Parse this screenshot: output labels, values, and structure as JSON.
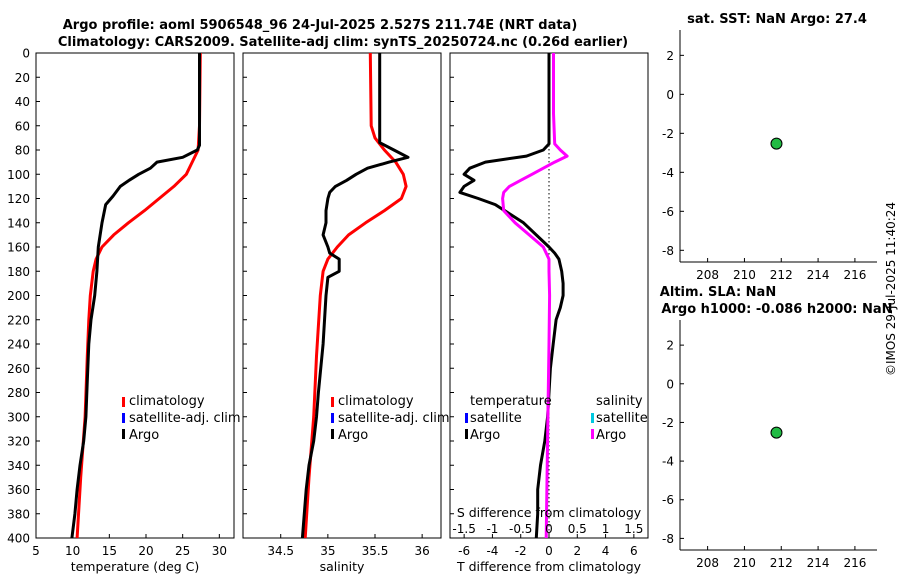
{
  "title_line1": "Argo profile: aoml 5906548_96 24-Jul-2025 2.527S 211.74E (NRT data)",
  "title_line2": "Climatology: CARS2009. Satellite-adj clim: synTS_20250724.nc (0.26d earlier)",
  "watermark": "©IMOS 29-Jul-2025 11:40:24",
  "colors": {
    "climatology": "#ff0000",
    "satellite_adj": "#0000ff",
    "argo": "#000000",
    "salinity_diff": "#ff00ff",
    "satellite_sal": "#00c8e0",
    "marker": "#22bb44"
  },
  "chart_data": [
    {
      "id": "temperature",
      "type": "line",
      "xlabel": "temperature (deg C)",
      "xlim": [
        5,
        32
      ],
      "xticks": [
        5,
        10,
        15,
        20,
        25,
        30
      ],
      "ylim": [
        0,
        400
      ],
      "yticks": [
        0,
        20,
        40,
        60,
        80,
        100,
        120,
        140,
        160,
        180,
        200,
        220,
        240,
        260,
        280,
        300,
        320,
        340,
        360,
        380,
        400
      ],
      "legend": [
        "climatology",
        "satellite-adj. clim",
        "Argo"
      ],
      "series": [
        {
          "name": "climatology",
          "color": "#ff0000",
          "depth": [
            0,
            60,
            80,
            90,
            100,
            110,
            120,
            130,
            140,
            150,
            160,
            170,
            180,
            200,
            220,
            250,
            300,
            350,
            400
          ],
          "values": [
            27.4,
            27.3,
            27.1,
            26.3,
            25.5,
            23.8,
            21.8,
            19.8,
            17.6,
            15.6,
            14.0,
            13.2,
            12.8,
            12.4,
            12.2,
            12.0,
            11.7,
            11.1,
            10.6
          ]
        },
        {
          "name": "Argo",
          "color": "#000000",
          "depth": [
            0,
            76,
            80,
            86,
            90,
            95,
            100,
            105,
            110,
            118,
            125,
            140,
            160,
            180,
            200,
            220,
            240,
            270,
            300,
            320,
            340,
            360,
            380,
            400
          ],
          "values": [
            27.3,
            27.3,
            27.0,
            25.0,
            21.5,
            20.6,
            19.0,
            17.7,
            16.5,
            15.5,
            14.5,
            14.0,
            13.5,
            13.3,
            13.0,
            12.5,
            12.2,
            12.0,
            11.8,
            11.5,
            11.0,
            10.6,
            10.3,
            9.9
          ]
        }
      ]
    },
    {
      "id": "salinity",
      "type": "line",
      "xlabel": "salinity",
      "xlim": [
        34.1,
        36.2
      ],
      "xticks": [
        34.5,
        35,
        35.5,
        36
      ],
      "ylim": [
        0,
        400
      ],
      "legend": [
        "climatology",
        "satellite-adj. clim",
        "Argo"
      ],
      "series": [
        {
          "name": "climatology",
          "color": "#ff0000",
          "depth": [
            0,
            60,
            70,
            80,
            90,
            100,
            110,
            120,
            130,
            140,
            150,
            160,
            170,
            180,
            200,
            250,
            300,
            350,
            400
          ],
          "values": [
            35.45,
            35.46,
            35.5,
            35.6,
            35.72,
            35.8,
            35.83,
            35.78,
            35.6,
            35.4,
            35.22,
            35.1,
            35.0,
            34.95,
            34.92,
            34.88,
            34.85,
            34.8,
            34.76
          ]
        },
        {
          "name": "Argo",
          "color": "#000000",
          "depth": [
            0,
            5,
            74,
            80,
            86,
            90,
            95,
            100,
            105,
            110,
            115,
            120,
            130,
            140,
            150,
            160,
            165,
            170,
            180,
            185,
            200,
            240,
            280,
            300,
            320,
            340,
            360,
            380,
            400
          ],
          "values": [
            35.55,
            35.55,
            35.55,
            35.7,
            35.85,
            35.65,
            35.42,
            35.3,
            35.2,
            35.08,
            35.02,
            35.0,
            34.98,
            34.98,
            34.95,
            35.0,
            35.02,
            35.12,
            35.12,
            35.0,
            34.98,
            34.95,
            34.9,
            34.88,
            34.85,
            34.8,
            34.77,
            34.75,
            34.73
          ]
        }
      ]
    },
    {
      "id": "difference",
      "type": "line",
      "xlabel": "T difference from climatology",
      "xlim": [
        -7,
        7
      ],
      "xticks": [
        -6,
        -4,
        -2,
        0,
        2,
        4,
        6
      ],
      "top_axis_label": "S difference from climatology",
      "top_ticks": [
        "-1.5",
        "-1",
        "-0.5",
        "0",
        "0.5",
        "1",
        "1.5"
      ],
      "ylim": [
        0,
        400
      ],
      "legend_temperature": {
        "title": "temperature",
        "entries": [
          "satellite",
          "Argo"
        ]
      },
      "legend_salinity": {
        "title": "salinity",
        "entries": [
          "satellite",
          "Argo"
        ]
      },
      "series": [
        {
          "name": "temperature Argo",
          "color": "#000000",
          "depth": [
            0,
            75,
            80,
            85,
            90,
            95,
            100,
            105,
            110,
            115,
            120,
            125,
            140,
            160,
            165,
            170,
            180,
            190,
            200,
            210,
            220,
            240,
            260,
            300,
            320,
            340,
            360,
            380,
            400
          ],
          "values": [
            0.0,
            0.0,
            -0.4,
            -1.6,
            -4.5,
            -5.6,
            -6.0,
            -5.3,
            -6.0,
            -6.3,
            -5.0,
            -3.8,
            -1.8,
            0.0,
            0.4,
            0.7,
            0.9,
            1.0,
            1.0,
            0.8,
            0.5,
            0.3,
            0.1,
            -0.1,
            -0.3,
            -0.6,
            -0.8,
            -0.8,
            -0.9
          ]
        },
        {
          "name": "salinity Argo",
          "color": "#ff00ff",
          "depth": [
            0,
            50,
            75,
            80,
            85,
            90,
            95,
            100,
            105,
            110,
            115,
            120,
            130,
            140,
            150,
            160,
            170,
            180,
            200,
            240,
            300,
            400
          ],
          "values": [
            0.08,
            0.08,
            0.1,
            0.2,
            0.32,
            0.1,
            -0.1,
            -0.3,
            -0.5,
            -0.7,
            -0.8,
            -0.82,
            -0.8,
            -0.6,
            -0.35,
            -0.1,
            0.0,
            0.0,
            0.01,
            0.0,
            -0.02,
            -0.05
          ]
        }
      ]
    },
    {
      "id": "sst",
      "type": "scatter",
      "title": "sat. SST: NaN Argo: 27.4",
      "xlim": [
        206.5,
        217.2
      ],
      "xticks": [
        208,
        210,
        212,
        214,
        216
      ],
      "ylim": [
        -8.6,
        3.3
      ],
      "yticks": [
        2,
        0,
        -2,
        -4,
        -6,
        -8
      ],
      "points": [
        {
          "x": 211.74,
          "y": -2.527
        }
      ]
    },
    {
      "id": "sla",
      "type": "scatter",
      "title_line1": "Altim. SLA: NaN",
      "title_line2": "Argo h1000: -0.086 h2000: NaN",
      "xlim": [
        206.5,
        217.2
      ],
      "xticks": [
        208,
        210,
        212,
        214,
        216
      ],
      "ylim": [
        -8.6,
        3.3
      ],
      "yticks": [
        2,
        0,
        -2,
        -4,
        -6,
        -8
      ],
      "points": [
        {
          "x": 211.74,
          "y": -2.527
        }
      ]
    }
  ]
}
